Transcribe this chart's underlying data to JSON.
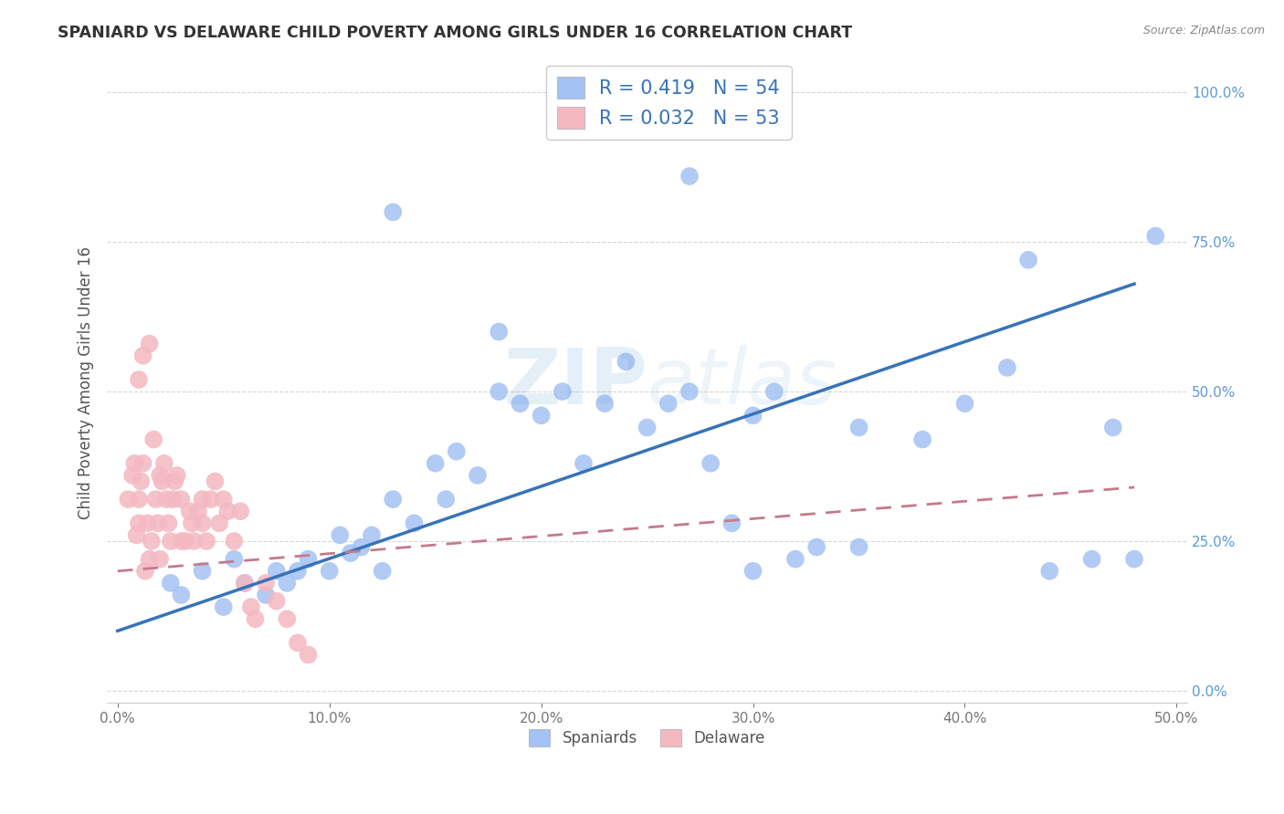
{
  "title": "SPANIARD VS DELAWARE CHILD POVERTY AMONG GIRLS UNDER 16 CORRELATION CHART",
  "source": "Source: ZipAtlas.com",
  "xlabel_spaniards": "Spaniards",
  "xlabel_delaware": "Delaware",
  "ylabel": "Child Poverty Among Girls Under 16",
  "xlim": [
    -0.005,
    0.505
  ],
  "ylim": [
    -0.02,
    1.05
  ],
  "xticks": [
    0.0,
    0.1,
    0.2,
    0.3,
    0.4,
    0.5
  ],
  "xticklabels": [
    "0.0%",
    "10.0%",
    "20.0%",
    "30.0%",
    "40.0%",
    "50.0%"
  ],
  "yticks": [
    0.0,
    0.25,
    0.5,
    0.75,
    1.0
  ],
  "yticklabels": [
    "0.0%",
    "25.0%",
    "50.0%",
    "75.0%",
    "100.0%"
  ],
  "spaniard_R": 0.419,
  "spaniard_N": 54,
  "delaware_R": 0.032,
  "delaware_N": 53,
  "blue_color": "#a4c2f4",
  "pink_color": "#f4b8c1",
  "blue_line_color": "#3873b8",
  "pink_line_color": "#c47a8a",
  "background_color": "#ffffff",
  "watermark_zip": "ZIP",
  "watermark_atlas": "atlas",
  "spaniard_x": [
    0.025,
    0.03,
    0.04,
    0.05,
    0.055,
    0.06,
    0.07,
    0.075,
    0.08,
    0.085,
    0.09,
    0.1,
    0.105,
    0.11,
    0.115,
    0.12,
    0.125,
    0.13,
    0.14,
    0.15,
    0.155,
    0.16,
    0.17,
    0.18,
    0.19,
    0.2,
    0.21,
    0.22,
    0.23,
    0.24,
    0.25,
    0.26,
    0.27,
    0.28,
    0.29,
    0.3,
    0.31,
    0.32,
    0.33,
    0.35,
    0.38,
    0.4,
    0.42,
    0.44,
    0.46,
    0.47,
    0.48,
    0.18,
    0.3,
    0.35,
    0.27,
    0.13,
    0.49,
    0.43
  ],
  "spaniard_y": [
    0.18,
    0.16,
    0.2,
    0.14,
    0.22,
    0.18,
    0.16,
    0.2,
    0.18,
    0.2,
    0.22,
    0.2,
    0.26,
    0.23,
    0.24,
    0.26,
    0.2,
    0.32,
    0.28,
    0.38,
    0.32,
    0.4,
    0.36,
    0.5,
    0.48,
    0.46,
    0.5,
    0.38,
    0.48,
    0.55,
    0.44,
    0.48,
    0.5,
    0.38,
    0.28,
    0.46,
    0.5,
    0.22,
    0.24,
    0.44,
    0.42,
    0.48,
    0.54,
    0.2,
    0.22,
    0.44,
    0.22,
    0.6,
    0.2,
    0.24,
    0.86,
    0.8,
    0.76,
    0.72
  ],
  "delaware_x": [
    0.005,
    0.007,
    0.008,
    0.009,
    0.01,
    0.01,
    0.011,
    0.012,
    0.013,
    0.014,
    0.015,
    0.016,
    0.017,
    0.018,
    0.019,
    0.02,
    0.02,
    0.021,
    0.022,
    0.023,
    0.024,
    0.025,
    0.026,
    0.027,
    0.028,
    0.03,
    0.03,
    0.032,
    0.034,
    0.035,
    0.036,
    0.038,
    0.04,
    0.04,
    0.042,
    0.044,
    0.046,
    0.048,
    0.05,
    0.052,
    0.055,
    0.058,
    0.06,
    0.063,
    0.065,
    0.07,
    0.075,
    0.08,
    0.085,
    0.09,
    0.01,
    0.012,
    0.015
  ],
  "delaware_y": [
    0.32,
    0.36,
    0.38,
    0.26,
    0.28,
    0.32,
    0.35,
    0.38,
    0.2,
    0.28,
    0.22,
    0.25,
    0.42,
    0.32,
    0.28,
    0.22,
    0.36,
    0.35,
    0.38,
    0.32,
    0.28,
    0.25,
    0.32,
    0.35,
    0.36,
    0.25,
    0.32,
    0.25,
    0.3,
    0.28,
    0.25,
    0.3,
    0.32,
    0.28,
    0.25,
    0.32,
    0.35,
    0.28,
    0.32,
    0.3,
    0.25,
    0.3,
    0.18,
    0.14,
    0.12,
    0.18,
    0.15,
    0.12,
    0.08,
    0.06,
    0.52,
    0.56,
    0.58
  ],
  "blue_line_x0": 0.0,
  "blue_line_y0": 0.1,
  "blue_line_x1": 0.48,
  "blue_line_y1": 0.68,
  "pink_line_x0": 0.0,
  "pink_line_y0": 0.2,
  "pink_line_x1": 0.48,
  "pink_line_y1": 0.34
}
